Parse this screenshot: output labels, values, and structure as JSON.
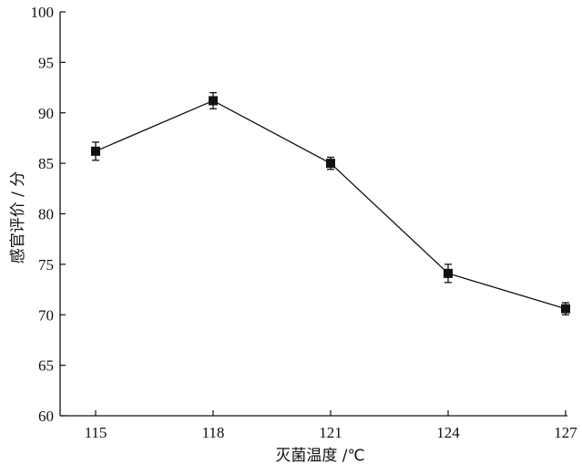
{
  "chart_data": {
    "type": "line",
    "title": "",
    "xlabel": "灭菌温度 /℃",
    "ylabel": "感官评价 / 分",
    "x": [
      115,
      118,
      121,
      124,
      127
    ],
    "x_ticks": [
      "115",
      "118",
      "121",
      "124",
      "127"
    ],
    "y_ticks": [
      "60",
      "65",
      "70",
      "75",
      "80",
      "85",
      "90",
      "95",
      "100"
    ],
    "ylim": [
      60,
      100
    ],
    "grid": false,
    "legend": "none",
    "series": [
      {
        "values": [
          86.2,
          91.2,
          85.0,
          74.1,
          70.6
        ],
        "error": [
          0.9,
          0.8,
          0.6,
          0.9,
          0.6
        ],
        "marker": "square",
        "color": "#111111"
      }
    ]
  }
}
